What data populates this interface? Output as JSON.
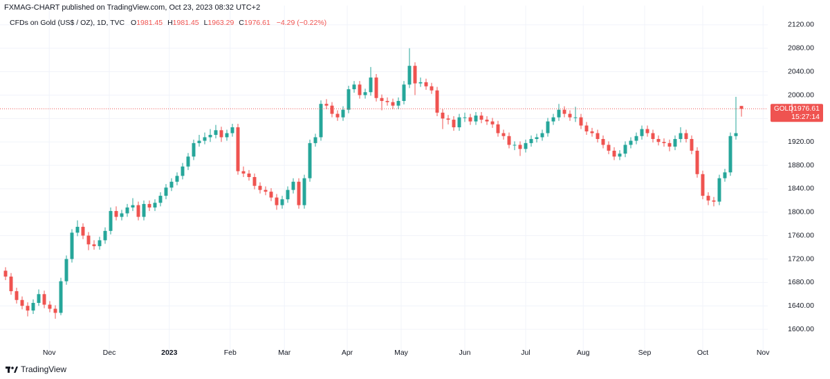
{
  "header": {
    "title": "FXMAG-CHART published on TradingView.com, Oct 23, 2023 08:32 UTC+2"
  },
  "footer": {
    "brand": "TradingView"
  },
  "chart_data": {
    "type": "candlestick",
    "title": "CFDs on Gold (US$ / OZ), 1D, TVC",
    "ohlc_labels": [
      "O",
      "H",
      "L",
      "C"
    ],
    "change_label": "−4.29 (−0.22%)",
    "symbol": "GOLD",
    "countdown": "15:27:14",
    "up_color": "#26a69a",
    "down_color": "#ef5350",
    "grid": true,
    "open": [
      1700,
      1690,
      1665,
      1650,
      1640,
      1632,
      1645,
      1660,
      1642,
      1635,
      1628,
      1682,
      1720,
      1765,
      1775,
      1760,
      1745,
      1742,
      1752,
      1768,
      1802,
      1792,
      1798,
      1808,
      1812,
      1792,
      1814,
      1808,
      1816,
      1828,
      1842,
      1852,
      1862,
      1878,
      1895,
      1918,
      1922,
      1928,
      1932,
      1940,
      1928,
      1935,
      1945,
      1870,
      1866,
      1860,
      1845,
      1838,
      1835,
      1825,
      1812,
      1822,
      1838,
      1852,
      1812,
      1858,
      1918,
      1928,
      1985,
      1982,
      1968,
      1962,
      1975,
      2010,
      2018,
      2000,
      2005,
      2030,
      1995,
      1990,
      1988,
      1982,
      1990,
      2018,
      2050,
      2020,
      2022,
      2015,
      2008,
      1970,
      1960,
      1958,
      1945,
      1962,
      1962,
      1955,
      1965,
      1958,
      1955,
      1950,
      1935,
      1930,
      1915,
      1915,
      1908,
      1918,
      1925,
      1928,
      1935,
      1955,
      1962,
      1975,
      1968,
      1962,
      1962,
      1948,
      1938,
      1935,
      1925,
      1915,
      1905,
      1895,
      1900,
      1915,
      1922,
      1930,
      1942,
      1935,
      1925,
      1920,
      1918,
      1912,
      1925,
      1935,
      1925,
      1905,
      1865,
      1828,
      1820,
      1818,
      1858,
      1868,
      1930,
      1981.45
    ],
    "high": [
      1706,
      1696,
      1671,
      1656,
      1646,
      1651,
      1668,
      1666,
      1648,
      1641,
      1688,
      1726,
      1771,
      1786,
      1781,
      1766,
      1752,
      1758,
      1774,
      1808,
      1810,
      1804,
      1814,
      1824,
      1818,
      1820,
      1820,
      1822,
      1834,
      1848,
      1858,
      1868,
      1884,
      1901,
      1924,
      1932,
      1936,
      1942,
      1949,
      1946,
      1941,
      1951,
      1951,
      1878,
      1872,
      1866,
      1851,
      1844,
      1841,
      1831,
      1828,
      1844,
      1858,
      1858,
      1864,
      1924,
      1934,
      1991,
      1993,
      1988,
      1974,
      1981,
      2016,
      2024,
      2024,
      2011,
      2048,
      2036,
      2001,
      1996,
      1994,
      1996,
      2024,
      2080,
      2056,
      2030,
      2028,
      2021,
      2014,
      1976,
      1966,
      1964,
      1968,
      1970,
      1968,
      1971,
      1971,
      1964,
      1961,
      1956,
      1941,
      1936,
      1921,
      1921,
      1924,
      1931,
      1934,
      1941,
      1961,
      1968,
      1985,
      1981,
      1974,
      1980,
      1968,
      1954,
      1944,
      1941,
      1931,
      1921,
      1911,
      1906,
      1921,
      1928,
      1936,
      1948,
      1948,
      1941,
      1931,
      1926,
      1924,
      1931,
      1945,
      1941,
      1931,
      1911,
      1871,
      1834,
      1826,
      1864,
      1874,
      1936,
      1997,
      1981.45
    ],
    "low": [
      1684,
      1659,
      1644,
      1634,
      1622,
      1626,
      1640,
      1636,
      1629,
      1618,
      1624,
      1676,
      1714,
      1759,
      1754,
      1735,
      1736,
      1736,
      1746,
      1762,
      1786,
      1786,
      1792,
      1802,
      1786,
      1786,
      1802,
      1802,
      1810,
      1822,
      1836,
      1846,
      1856,
      1872,
      1889,
      1912,
      1916,
      1920,
      1926,
      1920,
      1922,
      1929,
      1864,
      1860,
      1854,
      1839,
      1832,
      1829,
      1819,
      1804,
      1806,
      1816,
      1832,
      1806,
      1806,
      1852,
      1912,
      1922,
      1976,
      1962,
      1956,
      1956,
      1969,
      2004,
      1994,
      1994,
      1999,
      1989,
      1974,
      1982,
      1976,
      1976,
      1984,
      2012,
      2000,
      2014,
      2009,
      2002,
      1964,
      1942,
      1950,
      1939,
      1939,
      1954,
      1949,
      1949,
      1952,
      1949,
      1944,
      1929,
      1924,
      1909,
      1906,
      1896,
      1902,
      1912,
      1919,
      1922,
      1929,
      1949,
      1956,
      1962,
      1956,
      1954,
      1942,
      1932,
      1929,
      1919,
      1909,
      1899,
      1889,
      1889,
      1894,
      1909,
      1916,
      1924,
      1929,
      1919,
      1914,
      1912,
      1904,
      1906,
      1919,
      1919,
      1899,
      1859,
      1822,
      1812,
      1810,
      1812,
      1852,
      1862,
      1924,
      1963.29
    ],
    "close": [
      1690,
      1665,
      1650,
      1640,
      1632,
      1645,
      1660,
      1642,
      1635,
      1628,
      1682,
      1720,
      1765,
      1775,
      1760,
      1745,
      1742,
      1752,
      1768,
      1802,
      1792,
      1798,
      1808,
      1812,
      1792,
      1814,
      1808,
      1816,
      1828,
      1842,
      1852,
      1862,
      1878,
      1895,
      1918,
      1922,
      1928,
      1932,
      1940,
      1928,
      1935,
      1945,
      1870,
      1866,
      1860,
      1845,
      1838,
      1835,
      1825,
      1812,
      1822,
      1838,
      1852,
      1812,
      1858,
      1918,
      1928,
      1985,
      1982,
      1968,
      1962,
      1975,
      2010,
      2018,
      2000,
      2005,
      2030,
      1995,
      1990,
      1988,
      1982,
      1990,
      2018,
      2050,
      2020,
      2022,
      2015,
      2008,
      1970,
      1960,
      1958,
      1945,
      1962,
      1962,
      1955,
      1965,
      1958,
      1955,
      1950,
      1935,
      1930,
      1915,
      1915,
      1908,
      1918,
      1925,
      1928,
      1935,
      1955,
      1962,
      1975,
      1968,
      1962,
      1962,
      1948,
      1938,
      1935,
      1925,
      1915,
      1905,
      1895,
      1900,
      1915,
      1922,
      1930,
      1942,
      1935,
      1925,
      1920,
      1918,
      1912,
      1925,
      1935,
      1925,
      1905,
      1865,
      1828,
      1820,
      1818,
      1858,
      1868,
      1930,
      1935,
      1976.61
    ],
    "xlim": [
      -1,
      137.75
    ],
    "xticks": [
      {
        "value": 7.9,
        "label": "Nov"
      },
      {
        "value": 18.75,
        "label": "Dec"
      },
      {
        "value": 29.6,
        "label": "2023"
      },
      {
        "value": 40.6,
        "label": "Feb"
      },
      {
        "value": 50.4,
        "label": "Mar"
      },
      {
        "value": 61.75,
        "label": "Apr"
      },
      {
        "value": 71.5,
        "label": "May"
      },
      {
        "value": 83,
        "label": "Jun"
      },
      {
        "value": 94,
        "label": "Jul"
      },
      {
        "value": 104.4,
        "label": "Aug"
      },
      {
        "value": 115.5,
        "label": "Sep"
      },
      {
        "value": 126,
        "label": "Oct"
      },
      {
        "value": 136.9,
        "label": "Nov"
      }
    ],
    "ylim": [
      1554,
      2153
    ],
    "yticks": [
      {
        "value": 1600,
        "label": "1600.00"
      },
      {
        "value": 1640,
        "label": "1640.00"
      },
      {
        "value": 1680,
        "label": "1680.00"
      },
      {
        "value": 1720,
        "label": "1720.00"
      },
      {
        "value": 1760,
        "label": "1760.00"
      },
      {
        "value": 1800,
        "label": "1800.00"
      },
      {
        "value": 1840,
        "label": "1840.00"
      },
      {
        "value": 1880,
        "label": "1880.00"
      },
      {
        "value": 1920,
        "label": "1920.00"
      },
      {
        "value": 1960,
        "label": "1960.00"
      },
      {
        "value": 2000,
        "label": "2000.00"
      },
      {
        "value": 2040,
        "label": "2040.00"
      },
      {
        "value": 2080,
        "label": "2080.00"
      },
      {
        "value": 2120,
        "label": "2120.00"
      }
    ]
  }
}
